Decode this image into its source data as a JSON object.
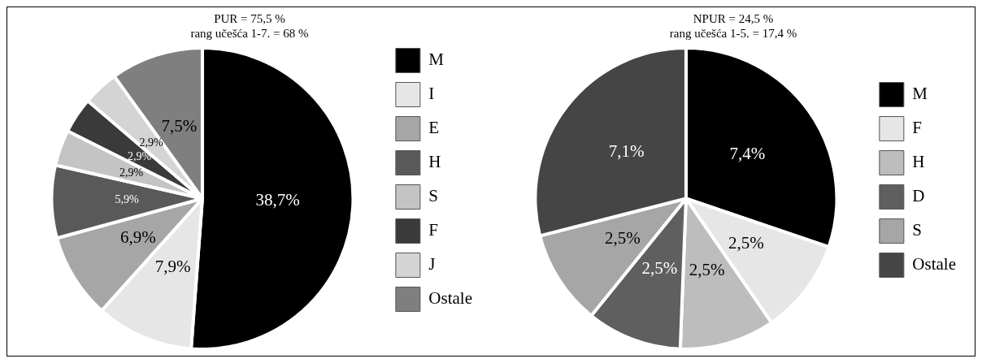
{
  "chart_data": [
    {
      "type": "pie",
      "title": "PUR = 75,5 %",
      "subtitle": "rang učešća 1-7. = 68 %",
      "categories": [
        "M",
        "I",
        "E",
        "H",
        "S",
        "F",
        "J",
        "Ostale"
      ],
      "values": [
        38.7,
        7.9,
        6.9,
        5.9,
        2.9,
        2.9,
        2.9,
        7.5
      ],
      "value_labels": [
        "38,7%",
        "7,9%",
        "6,9%",
        "5,9%",
        "2,9%",
        "2,9%",
        "2,9%",
        "7,5%"
      ],
      "colors": [
        "#000000",
        "#e6e6e6",
        "#a6a6a6",
        "#595959",
        "#c4c4c4",
        "#3a3a3a",
        "#d4d4d4",
        "#7f7f7f"
      ],
      "legend": "right"
    },
    {
      "type": "pie",
      "title": "NPUR = 24,5 %",
      "subtitle": "rang učešća 1-5. = 17,4 %",
      "categories": [
        "M",
        "F",
        "H",
        "D",
        "S",
        "Ostale"
      ],
      "values": [
        7.4,
        2.5,
        2.5,
        2.5,
        2.5,
        7.1
      ],
      "value_labels": [
        "7,4%",
        "2,5%",
        "2,5%",
        "2,5%",
        "2,5%",
        "7,1%"
      ],
      "colors": [
        "#000000",
        "#e6e6e6",
        "#bdbdbd",
        "#5f5f5f",
        "#a6a6a6",
        "#454545"
      ],
      "legend": "right"
    }
  ]
}
